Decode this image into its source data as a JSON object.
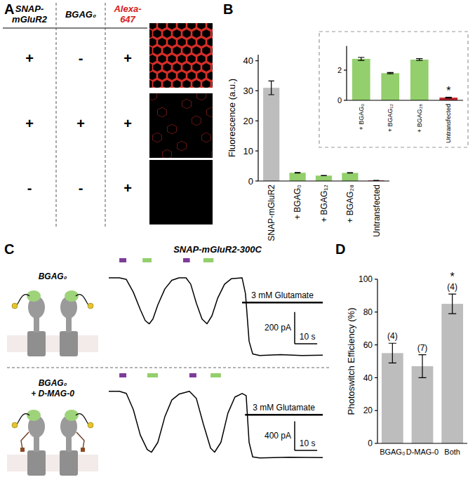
{
  "panel_labels": [
    "A",
    "B",
    "C",
    "D"
  ],
  "panel_a": {
    "columns": [
      {
        "text": "SNAP-mGluR2",
        "color": "#000000"
      },
      {
        "text": "BGAG₀",
        "color": "#000000"
      },
      {
        "text": "Alexa-647",
        "color": "#d42020"
      }
    ],
    "rows": [
      [
        "+",
        "-",
        "+"
      ],
      [
        "+",
        "+",
        "+"
      ],
      [
        "-",
        "-",
        "+"
      ]
    ]
  },
  "chart_data": [
    {
      "type": "bar",
      "y_label": "Fluorescence (a.u.)",
      "categories": [
        "SNAP-mGluR2",
        "+ BGAG₀",
        "+ BGAG₁₂",
        "+ BGAG₂₈",
        "Untransfected"
      ],
      "values": [
        31,
        2.75,
        1.8,
        2.7,
        0.18
      ],
      "errors": [
        2.3,
        0.1,
        0.04,
        0.06,
        0.03
      ],
      "colors": [
        "#bdbdbd",
        "#93cf6c",
        "#93cf6c",
        "#93cf6c",
        "#c1272d"
      ],
      "ylim": [
        0,
        42
      ],
      "yticks": [
        0,
        10,
        20,
        30,
        40
      ]
    },
    {
      "type": "bar",
      "categories": [
        "+ BGAG₀",
        "+ BGAG₁₂",
        "+ BGAG₂₈",
        "Untransfected"
      ],
      "values": [
        2.75,
        1.8,
        2.7,
        0.18
      ],
      "errors": [
        0.1,
        0.04,
        0.06,
        0.03
      ],
      "colors": [
        "#93cf6c",
        "#93cf6c",
        "#93cf6c",
        "#c1272d"
      ],
      "significance": [
        null,
        null,
        null,
        "*"
      ],
      "ylim": [
        0,
        3.6
      ],
      "yticks": [
        0,
        2
      ]
    },
    {
      "type": "line",
      "title": "SNAP-mGluR2-300C",
      "label_lines": [
        "BGAG₀"
      ],
      "color": "#000000",
      "tick_labels": false,
      "x": [
        0,
        4.7,
        7.8,
        10.9,
        14,
        16.2,
        18,
        19.6,
        21.8,
        24.9,
        28,
        31.2,
        34.3,
        36.4,
        38.9,
        41.4,
        43.6,
        45.8,
        48.3,
        51.4,
        54.5,
        59.2,
        60.7,
        62.3,
        63.9,
        67,
        76.3,
        85.7,
        95
      ],
      "values": [
        0,
        0,
        -10,
        -90,
        -200,
        -270,
        -290,
        -260,
        -170,
        -70,
        -15,
        0,
        0,
        -40,
        -160,
        -260,
        -290,
        -240,
        -130,
        -40,
        -5,
        0,
        -100,
        -400,
        -480,
        -490,
        -485,
        -490,
        -488
      ],
      "xlim": [
        0,
        95
      ],
      "ylim": [
        -540,
        80
      ],
      "light_pulses": [
        {
          "start": 4.7,
          "end": 7.8,
          "color": "#7d3c98"
        },
        {
          "start": 15,
          "end": 19,
          "color": "#93cf6c"
        },
        {
          "start": 33,
          "end": 36,
          "color": "#7d3c98"
        },
        {
          "start": 42,
          "end": 46.5,
          "color": "#93cf6c"
        }
      ],
      "glutamate": {
        "start": 59.2,
        "end": 95,
        "label": "3 mM Glutamate"
      },
      "scale_bars": {
        "x": 10,
        "x_label": "10 s",
        "y": 200,
        "y_label": "200 pA"
      }
    },
    {
      "type": "line",
      "label_lines": [
        "BGAG₀",
        "+ D-MAG-0"
      ],
      "color": "#000000",
      "tick_labels": false,
      "x": [
        0,
        4.7,
        7.8,
        10.9,
        14,
        17.1,
        19,
        21.8,
        24.9,
        28,
        31.2,
        35.8,
        38.9,
        42,
        45.2,
        47,
        49.8,
        52.9,
        56,
        59.2,
        61,
        62.3,
        63.9,
        67,
        80,
        95
      ],
      "values": [
        0,
        0,
        -30,
        -250,
        -600,
        -800,
        -835,
        -700,
        -350,
        -120,
        -40,
        0,
        -100,
        -450,
        -780,
        -835,
        -700,
        -300,
        -80,
        -30,
        -60,
        -700,
        -900,
        -915,
        -905,
        -910
      ],
      "xlim": [
        0,
        95
      ],
      "ylim": [
        -1080,
        170
      ],
      "light_pulses": [
        {
          "start": 4.7,
          "end": 7.8,
          "color": "#7d3c98"
        },
        {
          "start": 17.1,
          "end": 21.8,
          "color": "#93cf6c"
        },
        {
          "start": 35.8,
          "end": 38.9,
          "color": "#7d3c98"
        },
        {
          "start": 45.2,
          "end": 49.8,
          "color": "#93cf6c"
        }
      ],
      "glutamate": {
        "start": 60.5,
        "end": 95,
        "label": "3 mM Glutamate"
      },
      "scale_bars": {
        "x": 10,
        "x_label": "10 s",
        "y": 400,
        "y_label": "400 pA"
      }
    },
    {
      "type": "bar",
      "y_label": "Photoswitch Efficiency (%)",
      "categories": [
        "BGAG₀",
        "D-MAG-0",
        "Both"
      ],
      "values": [
        55,
        47,
        85
      ],
      "errors": [
        6,
        7,
        6
      ],
      "colors": [
        "#bdbdbd",
        "#bdbdbd",
        "#bdbdbd"
      ],
      "n_labels": [
        "(4)",
        "(7)",
        "(4)"
      ],
      "significance": [
        null,
        null,
        "*"
      ],
      "ylim": [
        0,
        100
      ],
      "yticks": [
        0,
        20,
        40,
        60,
        80,
        100
      ]
    }
  ]
}
